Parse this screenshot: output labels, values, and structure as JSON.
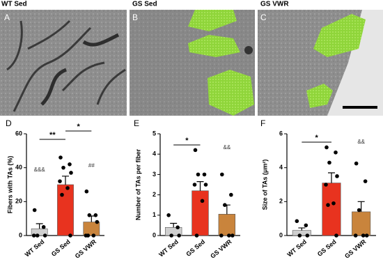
{
  "micrographs": [
    {
      "title": "WT Sed",
      "letter": "A"
    },
    {
      "title": "GS Sed",
      "letter": "B"
    },
    {
      "title": "GS VWR",
      "letter": "C"
    }
  ],
  "chart_data": [
    {
      "type": "bar",
      "panel": "D",
      "y_label": "Fibers with TAs (%)",
      "categories": [
        "WT Sed",
        "GS Sed",
        "GS VWR"
      ],
      "values": [
        4,
        30,
        8
      ],
      "errors": [
        3,
        5,
        3.5
      ],
      "points": [
        [
          15,
          5,
          0,
          0,
          0
        ],
        [
          46,
          42,
          40,
          37,
          32,
          28,
          24,
          0
        ],
        [
          26,
          12,
          12,
          8,
          0,
          0,
          0
        ]
      ],
      "colors": [
        "#cfcfcf",
        "#e8331f",
        "#c9843c"
      ],
      "ylim": [
        0,
        60
      ],
      "yticks": [
        0,
        20,
        40,
        60
      ],
      "annotations": [
        "**",
        "*",
        "&&&",
        "##"
      ]
    },
    {
      "type": "bar",
      "panel": "E",
      "y_label": "Number of TAs per fiber",
      "categories": [
        "WT Sed",
        "GS Sed",
        "GS VWR"
      ],
      "values": [
        0.4,
        2.2,
        1.05
      ],
      "errors": [
        0.2,
        0.45,
        0.45
      ],
      "points": [
        [
          1,
          0.4,
          0,
          0
        ],
        [
          4.2,
          3,
          3,
          2.5,
          2.5,
          1.7,
          0
        ],
        [
          3,
          2,
          1.5,
          0,
          0,
          0
        ]
      ],
      "colors": [
        "#cfcfcf",
        "#e8331f",
        "#c9843c"
      ],
      "ylim": [
        0,
        5
      ],
      "yticks": [
        0,
        1,
        2,
        3,
        4,
        5
      ],
      "annotations": [
        "*",
        "&&"
      ]
    },
    {
      "type": "bar",
      "panel": "F",
      "y_label": "Size of TAs (μm²)",
      "categories": [
        "WT Sed",
        "GS Sed",
        "GS VWR"
      ],
      "values": [
        0.3,
        3.1,
        1.4
      ],
      "errors": [
        0.15,
        0.6,
        0.6
      ],
      "points": [
        [
          0.85,
          0.6,
          0,
          0
        ],
        [
          5.2,
          4.9,
          4.3,
          3.5,
          3,
          1.9,
          1.8,
          0
        ],
        [
          4.25,
          3.2,
          1.5,
          0,
          0,
          0
        ]
      ],
      "colors": [
        "#cfcfcf",
        "#e8331f",
        "#c9843c"
      ],
      "ylim": [
        0,
        6
      ],
      "yticks": [
        0,
        2,
        4,
        6
      ],
      "annotations": [
        "*",
        "&&"
      ]
    }
  ]
}
